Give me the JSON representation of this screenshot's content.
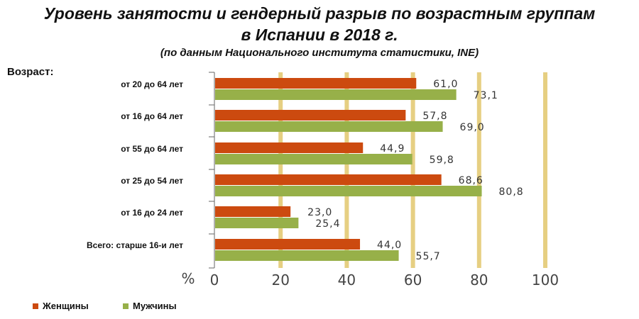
{
  "title_line1": "Уровень занятости и гендерный разрыв по возрастным группам",
  "title_line2": "в Испании в 2018 г.",
  "subtitle": "(по данным Национального института статистики, INE)",
  "y_header": "Возраст:",
  "chart_data": {
    "type": "bar",
    "orientation": "horizontal",
    "categories": [
      "от 20 до 64 лет",
      "от 16 до 64 лет",
      "от 55 до 64 лет",
      "от 25 до 54 лет",
      "от 16 до 24 лет",
      "Всего: старше 16-и лет"
    ],
    "series": [
      {
        "name": "Женщины",
        "values": [
          61.0,
          57.8,
          44.9,
          68.6,
          23.0,
          44.0
        ],
        "labels": [
          "61,0",
          "57,8",
          "44,9",
          "68,6",
          "23,0",
          "44,0"
        ],
        "color": "#cc4a0f"
      },
      {
        "name": "Мужчины",
        "values": [
          73.1,
          69.0,
          59.8,
          80.8,
          25.4,
          55.7
        ],
        "labels": [
          "73,1",
          "69,0",
          "59,8",
          "80,8",
          "25,4",
          "55,7"
        ],
        "color": "#97b049"
      }
    ],
    "x_unit": "%",
    "xlim": [
      0,
      100
    ],
    "xticks": [
      0,
      20,
      40,
      60,
      80,
      100
    ],
    "grid": true,
    "grid_color": "#e6cf82",
    "legend_position": "bottom-left"
  }
}
